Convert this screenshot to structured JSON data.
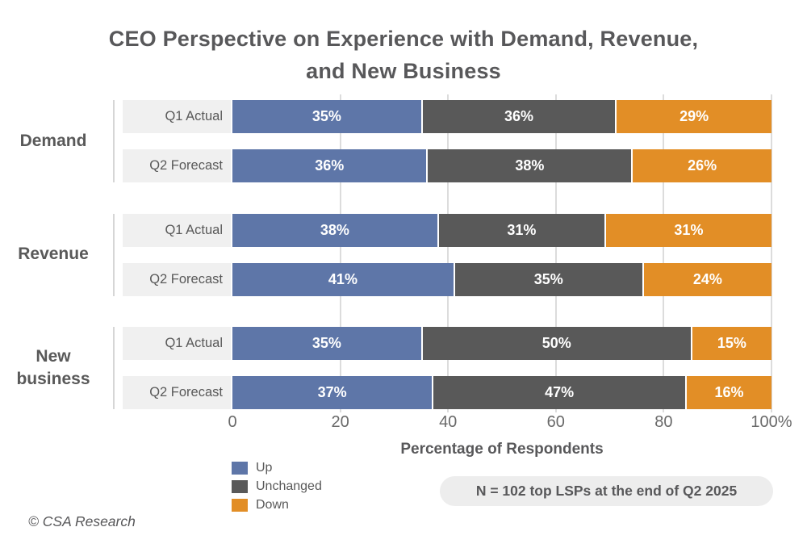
{
  "title": "CEO Perspective on Experience with Demand, Revenue,\nand New Business",
  "chart_data": {
    "type": "bar",
    "orientation": "horizontal",
    "stacked": true,
    "title": "CEO Perspective on Experience with Demand, Revenue, and New Business",
    "xlabel": "Percentage of Respondents",
    "xlim": [
      0,
      100
    ],
    "x_ticks": [
      "0",
      "20",
      "40",
      "60",
      "80",
      "100%"
    ],
    "tick_values": [
      0,
      20,
      40,
      60,
      80,
      100
    ],
    "grid": true,
    "legend_position": "bottom-left",
    "series_names": [
      "Up",
      "Unchanged",
      "Down"
    ],
    "series_colors": [
      "#5e76a8",
      "#595959",
      "#e28e26"
    ],
    "groups": [
      {
        "label": "Demand",
        "rows": [
          {
            "label": "Q1 Actual",
            "values": [
              35,
              36,
              29
            ],
            "value_labels": [
              "35%",
              "36%",
              "29%"
            ]
          },
          {
            "label": "Q2 Forecast",
            "values": [
              36,
              38,
              26
            ],
            "value_labels": [
              "36%",
              "38%",
              "26%"
            ]
          }
        ]
      },
      {
        "label": "Revenue",
        "rows": [
          {
            "label": "Q1 Actual",
            "values": [
              38,
              31,
              31
            ],
            "value_labels": [
              "38%",
              "31%",
              "31%"
            ]
          },
          {
            "label": "Q2 Forecast",
            "values": [
              41,
              35,
              24
            ],
            "value_labels": [
              "41%",
              "35%",
              "24%"
            ]
          }
        ]
      },
      {
        "label": "New business",
        "rows": [
          {
            "label": "Q1 Actual",
            "values": [
              35,
              50,
              15
            ],
            "value_labels": [
              "35%",
              "50%",
              "15%"
            ]
          },
          {
            "label": "Q2 Forecast",
            "values": [
              37,
              47,
              16
            ],
            "value_labels": [
              "37%",
              "47%",
              "16%"
            ]
          }
        ]
      }
    ]
  },
  "legend": {
    "items": [
      {
        "label": "Up",
        "color": "#5e76a8"
      },
      {
        "label": "Unchanged",
        "color": "#595959"
      },
      {
        "label": "Down",
        "color": "#e28e26"
      }
    ]
  },
  "note": "N = 102 top LSPs at the end of Q2 2025",
  "footer": "© CSA Research"
}
